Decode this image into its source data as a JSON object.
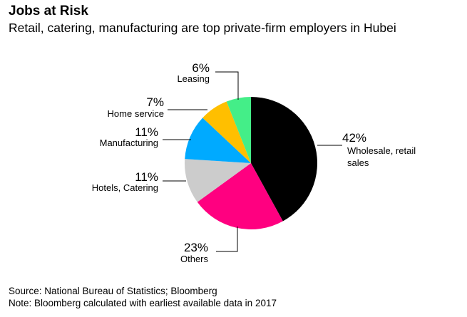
{
  "header": {
    "title": "Jobs at Risk",
    "subtitle": "Retail, catering, manufacturing are top private-firm employers in Hubei"
  },
  "footer": {
    "source": "Source: National Bureau of Statistics; Bloomberg",
    "note": "Note: Bloomberg calculated with earliest available data in 2017"
  },
  "chart_data": {
    "type": "pie",
    "title": "Jobs at Risk",
    "start_angle_deg": 0,
    "direction": "clockwise",
    "slices": [
      {
        "label": "Wholesale, retail sales",
        "label_lines": [
          "Wholesale, retail",
          "sales"
        ],
        "value": 42,
        "pct_label": "42%",
        "color": "#000000"
      },
      {
        "label": "Others",
        "label_lines": [
          "Others"
        ],
        "value": 23,
        "pct_label": "23%",
        "color": "#ff0080"
      },
      {
        "label": "Hotels, Catering",
        "label_lines": [
          "Hotels, Catering"
        ],
        "value": 11,
        "pct_label": "11%",
        "color": "#cccccc"
      },
      {
        "label": "Manufacturing",
        "label_lines": [
          "Manufacturing"
        ],
        "value": 11,
        "pct_label": "11%",
        "color": "#00aaff"
      },
      {
        "label": "Home service",
        "label_lines": [
          "Home service"
        ],
        "value": 7,
        "pct_label": "7%",
        "color": "#ffbf00"
      },
      {
        "label": "Leasing",
        "label_lines": [
          "Leasing"
        ],
        "value": 6,
        "pct_label": "6%",
        "color": "#44ee88"
      }
    ]
  }
}
